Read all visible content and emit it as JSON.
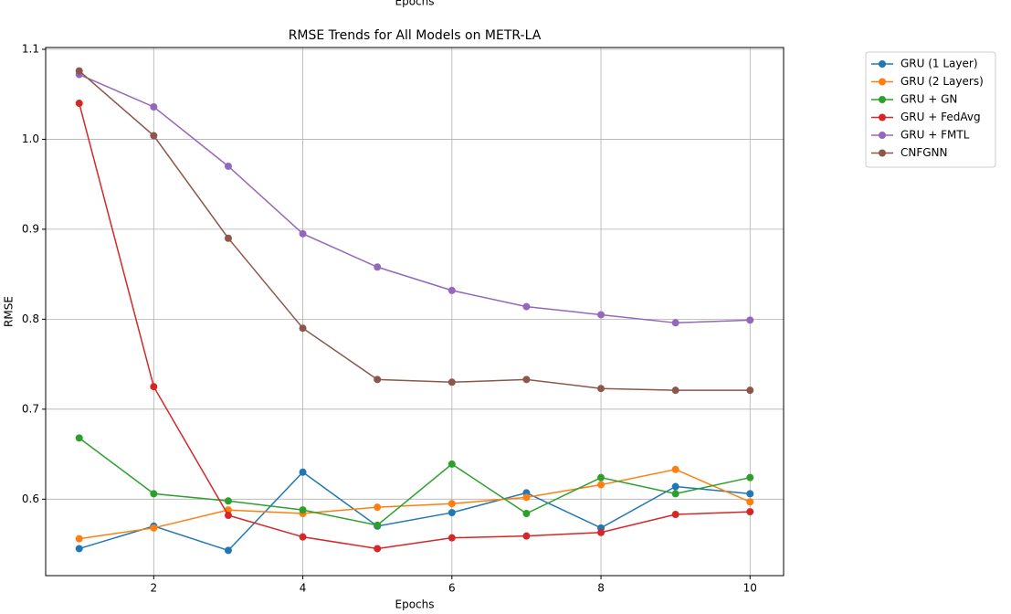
{
  "cropped_label": "Epochs",
  "chart_data": {
    "type": "line",
    "title": "RMSE Trends for All Models on METR-LA",
    "x_label": "Epochs",
    "y_label": "RMSE",
    "x": [
      1,
      2,
      3,
      4,
      5,
      6,
      7,
      8,
      9,
      10
    ],
    "series": [
      {
        "name": "GRU (1 Layer)",
        "color": "#1f77b4",
        "values": [
          0.545,
          0.57,
          0.543,
          0.63,
          0.57,
          0.585,
          0.607,
          0.568,
          0.614,
          0.606
        ]
      },
      {
        "name": "GRU (2 Layers)",
        "color": "#ff7f0e",
        "values": [
          0.556,
          0.568,
          0.588,
          0.584,
          0.591,
          0.595,
          0.602,
          0.616,
          0.633,
          0.597
        ]
      },
      {
        "name": "GRU + GN",
        "color": "#2ca02c",
        "values": [
          0.668,
          0.606,
          0.598,
          0.588,
          0.571,
          0.639,
          0.584,
          0.624,
          0.606,
          0.624
        ]
      },
      {
        "name": "GRU + FedAvg",
        "color": "#d62728",
        "values": [
          1.04,
          0.725,
          0.582,
          0.558,
          0.545,
          0.557,
          0.559,
          0.563,
          0.583,
          0.586
        ]
      },
      {
        "name": "GRU + FMTL",
        "color": "#9467bd",
        "values": [
          1.072,
          1.036,
          0.97,
          0.895,
          0.858,
          0.832,
          0.814,
          0.805,
          0.796,
          0.799
        ]
      },
      {
        "name": "CNFGNN",
        "color": "#8c564b",
        "values": [
          1.076,
          1.004,
          0.89,
          0.79,
          0.733,
          0.73,
          0.733,
          0.723,
          0.721,
          0.721
        ]
      }
    ],
    "xlim": [
      0.55,
      10.45
    ],
    "ylim": [
      0.515,
      1.102
    ],
    "xticks": [
      2,
      4,
      6,
      8,
      10
    ],
    "yticks": [
      0.6,
      0.7,
      0.8,
      0.9,
      {
        "value": 1,
        "label": "1.0"
      },
      1.1
    ],
    "grid": true,
    "legend": "outside right"
  }
}
